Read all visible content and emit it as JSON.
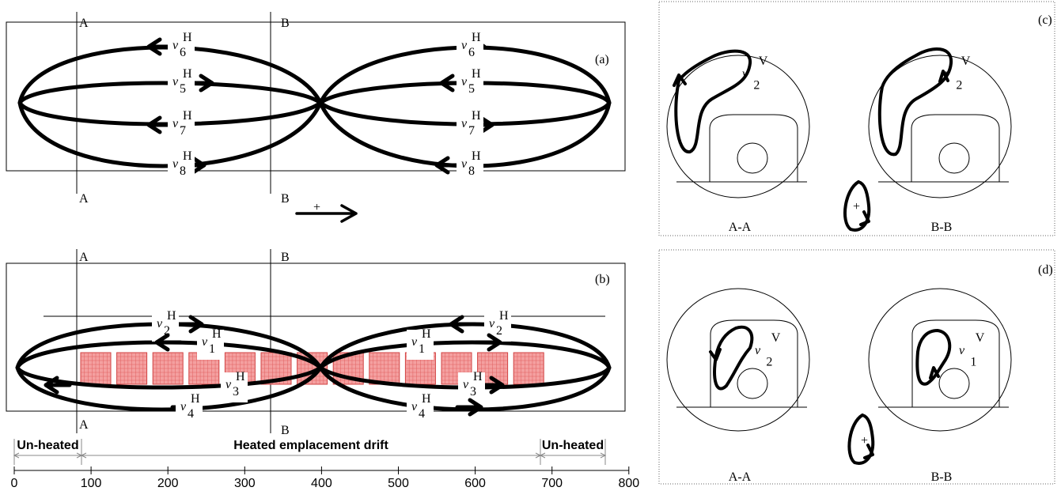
{
  "panel_a": {
    "tag": "(a)",
    "section_labels": [
      "A",
      "B",
      "A",
      "B"
    ],
    "sign": "+",
    "arrows": [
      {
        "symbol": "v",
        "sup": "H",
        "sub": "6"
      },
      {
        "symbol": "v",
        "sup": "H",
        "sub": "5"
      },
      {
        "symbol": "v",
        "sup": "H",
        "sub": "7"
      },
      {
        "symbol": "v",
        "sup": "H",
        "sub": "8"
      },
      {
        "symbol": "v",
        "sup": "H",
        "sub": "6"
      },
      {
        "symbol": "v",
        "sup": "H",
        "sub": "5"
      },
      {
        "symbol": "v",
        "sup": "H",
        "sub": "7"
      },
      {
        "symbol": "v",
        "sup": "H",
        "sub": "8"
      }
    ]
  },
  "panel_b": {
    "tag": "(b)",
    "section_labels": [
      "A",
      "B",
      "A",
      "B"
    ],
    "arrows": [
      {
        "symbol": "v",
        "sup": "H",
        "sub": "2"
      },
      {
        "symbol": "v",
        "sup": "H",
        "sub": "1"
      },
      {
        "symbol": "v",
        "sup": "H",
        "sub": "3"
      },
      {
        "symbol": "v",
        "sup": "H",
        "sub": "4"
      },
      {
        "symbol": "v",
        "sup": "H",
        "sub": "2"
      },
      {
        "symbol": "v",
        "sup": "H",
        "sub": "1"
      },
      {
        "symbol": "v",
        "sup": "H",
        "sub": "3"
      },
      {
        "symbol": "v",
        "sup": "H",
        "sub": "4"
      }
    ]
  },
  "scale": {
    "zones": [
      "Un-heated",
      "Heated emplacement drift",
      "Un-heated"
    ],
    "ticks": [
      0,
      100,
      200,
      300,
      400,
      500,
      600,
      700,
      800
    ]
  },
  "panel_c": {
    "tag": "(c)",
    "views": [
      "A-A",
      "B-B"
    ],
    "sign": "+",
    "loops": [
      {
        "symbol": "v",
        "sup": "V",
        "sub": "2"
      },
      {
        "symbol": "v",
        "sup": "V",
        "sub": "2"
      }
    ]
  },
  "panel_d": {
    "tag": "(d)",
    "views": [
      "A-A",
      "B-B"
    ],
    "sign": "+",
    "loops": [
      {
        "symbol": "v",
        "sup": "V",
        "sub": "2"
      },
      {
        "symbol": "v",
        "sup": "V",
        "sub": "1"
      }
    ]
  }
}
